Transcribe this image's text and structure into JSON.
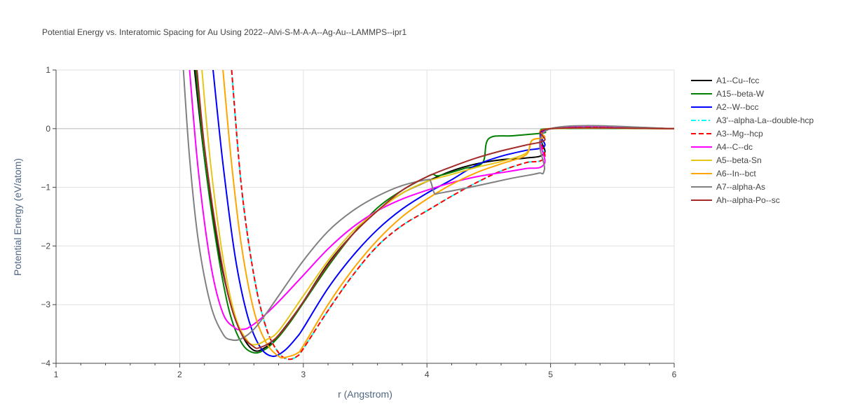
{
  "chart_data": {
    "type": "line",
    "title": "Potential Energy vs. Interatomic Spacing for Au Using 2022--Alvi-S-M-A-A--Ag-Au--LAMMPS--ipr1",
    "xlabel": "r (Angstrom)",
    "ylabel": "Potential Energy (eV/atom)",
    "xlim": [
      1,
      6
    ],
    "ylim": [
      -4,
      1
    ],
    "xticks": [
      "1",
      "2",
      "3",
      "4",
      "5",
      "6"
    ],
    "yticks": [
      "1",
      "0",
      "−1",
      "−2",
      "−3",
      "−4"
    ],
    "grid": true,
    "legend_position": "right",
    "series": [
      {
        "name": "A1--Cu--fcc",
        "color": "#000000",
        "dash": "solid",
        "x": [
          2.12,
          2.2,
          2.3,
          2.4,
          2.5,
          2.6,
          2.7,
          2.8,
          2.9,
          3.0,
          3.2,
          3.4,
          3.6,
          3.8,
          4.0,
          4.2,
          4.4,
          4.6,
          4.8,
          4.95,
          5.0,
          6.0
        ],
        "y": [
          1.0,
          -0.5,
          -1.9,
          -2.9,
          -3.5,
          -3.78,
          -3.72,
          -3.52,
          -3.25,
          -2.95,
          -2.3,
          -1.8,
          -1.4,
          -1.1,
          -0.9,
          -0.72,
          -0.6,
          -0.53,
          -0.5,
          -0.42,
          0.0,
          0.0
        ]
      },
      {
        "name": "A15--beta-W",
        "color": "#008000",
        "dash": "solid",
        "x": [
          2.13,
          2.2,
          2.3,
          2.4,
          2.5,
          2.6,
          2.7,
          2.8,
          2.9,
          3.0,
          3.2,
          3.4,
          3.6,
          3.8,
          4.0,
          4.05,
          4.1,
          4.3,
          4.45,
          4.5,
          4.7,
          4.95,
          5.0,
          6.0
        ],
        "y": [
          1.0,
          -0.5,
          -2.0,
          -3.1,
          -3.65,
          -3.82,
          -3.75,
          -3.55,
          -3.28,
          -2.97,
          -2.35,
          -1.8,
          -1.35,
          -1.05,
          -0.82,
          -0.78,
          -0.8,
          -0.68,
          -0.58,
          -0.17,
          -0.12,
          -0.07,
          0.0,
          0.0
        ]
      },
      {
        "name": "A2--W--bcc",
        "color": "#0000ff",
        "dash": "solid",
        "x": [
          2.27,
          2.35,
          2.45,
          2.55,
          2.65,
          2.75,
          2.85,
          2.95,
          3.0,
          3.2,
          3.4,
          3.6,
          3.8,
          4.0,
          4.2,
          4.4,
          4.6,
          4.8,
          4.95,
          5.0,
          6.0
        ],
        "y": [
          1.0,
          -0.6,
          -2.2,
          -3.2,
          -3.72,
          -3.88,
          -3.78,
          -3.55,
          -3.4,
          -2.72,
          -2.17,
          -1.72,
          -1.37,
          -1.1,
          -0.87,
          -0.62,
          -0.47,
          -0.37,
          -0.3,
          0.0,
          0.0
        ]
      },
      {
        "name": "A3'--alpha-La--double-hcp",
        "color": "#00ffff",
        "dash": "dashdot",
        "x": [
          2.42,
          2.5,
          2.6,
          2.7,
          2.8,
          2.88,
          2.95,
          3.0,
          3.2,
          3.4,
          3.6,
          3.8,
          4.0,
          4.2,
          4.4,
          4.6,
          4.8,
          4.95,
          5.0,
          6.0
        ],
        "y": [
          1.0,
          -1.0,
          -2.5,
          -3.4,
          -3.82,
          -3.93,
          -3.88,
          -3.75,
          -3.1,
          -2.5,
          -2.0,
          -1.65,
          -1.4,
          -1.15,
          -0.92,
          -0.72,
          -0.58,
          -0.5,
          0.0,
          0.0
        ]
      },
      {
        "name": "A3--Mg--hcp",
        "color": "#ff0000",
        "dash": "dash",
        "x": [
          2.42,
          2.5,
          2.6,
          2.7,
          2.8,
          2.88,
          2.95,
          3.0,
          3.2,
          3.4,
          3.6,
          3.8,
          4.0,
          4.2,
          4.4,
          4.6,
          4.8,
          4.95,
          5.0,
          6.0
        ],
        "y": [
          1.0,
          -1.0,
          -2.5,
          -3.4,
          -3.82,
          -3.93,
          -3.88,
          -3.75,
          -3.1,
          -2.5,
          -2.0,
          -1.65,
          -1.4,
          -1.15,
          -0.92,
          -0.72,
          -0.58,
          -0.5,
          0.0,
          0.0
        ]
      },
      {
        "name": "A4--C--dc",
        "color": "#ff00ff",
        "dash": "solid",
        "x": [
          2.08,
          2.15,
          2.25,
          2.35,
          2.45,
          2.5,
          2.55,
          2.65,
          2.8,
          3.0,
          3.2,
          3.4,
          3.6,
          3.8,
          4.0,
          4.2,
          4.4,
          4.6,
          4.8,
          4.95,
          5.0,
          6.0
        ],
        "y": [
          1.0,
          -0.7,
          -2.3,
          -3.15,
          -3.4,
          -3.42,
          -3.4,
          -3.25,
          -2.95,
          -2.5,
          -2.05,
          -1.68,
          -1.4,
          -1.2,
          -1.05,
          -0.92,
          -0.82,
          -0.75,
          -0.68,
          -0.6,
          0.0,
          0.0
        ]
      },
      {
        "name": "A5--beta-Sn",
        "color": "#e6c619",
        "dash": "solid",
        "x": [
          2.18,
          2.25,
          2.35,
          2.45,
          2.55,
          2.62,
          2.7,
          2.8,
          3.0,
          3.2,
          3.4,
          3.6,
          3.8,
          4.0,
          4.2,
          4.4,
          4.6,
          4.8,
          4.85,
          4.95,
          5.0,
          6.0
        ],
        "y": [
          1.0,
          -0.6,
          -2.2,
          -3.2,
          -3.62,
          -3.68,
          -3.6,
          -3.45,
          -2.85,
          -2.25,
          -1.75,
          -1.4,
          -1.1,
          -0.9,
          -0.78,
          -0.66,
          -0.56,
          -0.42,
          -0.2,
          -0.15,
          0.0,
          0.0
        ]
      },
      {
        "name": "A6--In--bct",
        "color": "#ffa500",
        "dash": "solid",
        "x": [
          2.35,
          2.42,
          2.5,
          2.6,
          2.7,
          2.8,
          2.85,
          2.95,
          3.0,
          3.2,
          3.4,
          3.6,
          3.8,
          4.0,
          4.2,
          4.4,
          4.6,
          4.8,
          4.85,
          4.95,
          5.0,
          6.0
        ],
        "y": [
          1.0,
          -0.6,
          -2.0,
          -3.1,
          -3.65,
          -3.88,
          -3.9,
          -3.83,
          -3.7,
          -3.0,
          -2.4,
          -1.9,
          -1.5,
          -1.2,
          -0.95,
          -0.75,
          -0.6,
          -0.45,
          -0.2,
          -0.15,
          0.0,
          0.0
        ]
      },
      {
        "name": "A7--alpha-As",
        "color": "#808080",
        "dash": "solid",
        "x": [
          2.03,
          2.08,
          2.15,
          2.25,
          2.35,
          2.42,
          2.5,
          2.6,
          2.7,
          2.8,
          3.0,
          3.2,
          3.4,
          3.6,
          3.8,
          4.0,
          4.03,
          4.06,
          4.1,
          4.3,
          4.5,
          4.7,
          4.9,
          4.95,
          5.0,
          6.0
        ],
        "y": [
          1.0,
          -0.5,
          -1.9,
          -3.0,
          -3.5,
          -3.6,
          -3.58,
          -3.42,
          -3.15,
          -2.85,
          -2.25,
          -1.75,
          -1.4,
          -1.15,
          -0.97,
          -0.87,
          -0.9,
          -1.1,
          -1.1,
          -1.02,
          -0.93,
          -0.84,
          -0.76,
          -0.7,
          0.0,
          0.0
        ]
      },
      {
        "name": "Ah--alpha-Po--sc",
        "color": "#a52a2a",
        "dash": "solid",
        "x": [
          2.14,
          2.2,
          2.3,
          2.4,
          2.5,
          2.6,
          2.65,
          2.75,
          2.85,
          3.0,
          3.2,
          3.4,
          3.6,
          3.8,
          4.0,
          4.2,
          4.4,
          4.6,
          4.8,
          4.95,
          5.0,
          6.0
        ],
        "y": [
          1.0,
          -0.3,
          -1.8,
          -2.9,
          -3.5,
          -3.72,
          -3.73,
          -3.62,
          -3.4,
          -2.95,
          -2.32,
          -1.8,
          -1.4,
          -1.05,
          -0.82,
          -0.65,
          -0.5,
          -0.38,
          -0.28,
          -0.2,
          0.0,
          0.0
        ]
      }
    ]
  }
}
